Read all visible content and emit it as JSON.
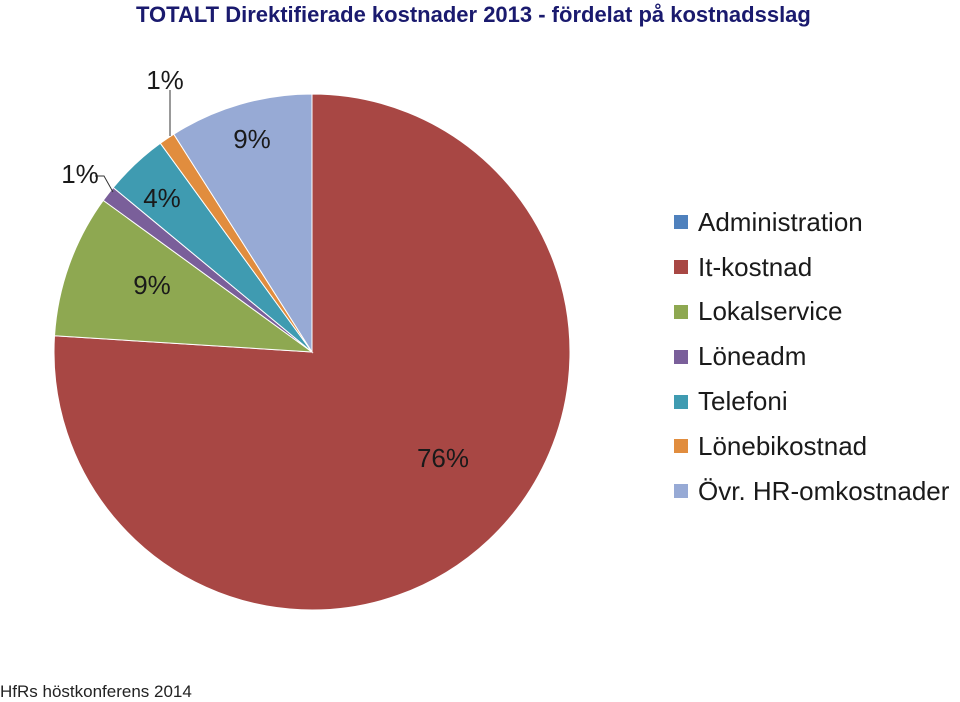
{
  "chart_data": {
    "type": "pie",
    "title": "TOTALT Direktifierade kostnader 2013 - fördelat på kostnadsslag",
    "legend_position": "right",
    "slices": [
      {
        "name": "Administration",
        "value": 0,
        "label": "",
        "color": "#4f81bd"
      },
      {
        "name": "It-kostnad",
        "value": 76,
        "label": "76%",
        "color": "#a84744"
      },
      {
        "name": "Lokalservice",
        "value": 9,
        "label": "9%",
        "color": "#8ea851"
      },
      {
        "name": "Löneadm",
        "value": 1,
        "label": "1%",
        "color": "#7a5f9a"
      },
      {
        "name": "Telefoni",
        "value": 4,
        "label": "4%",
        "color": "#3f9bb1"
      },
      {
        "name": "Lönebikostnad",
        "value": 1,
        "label": "1%",
        "color": "#e18d3e"
      },
      {
        "name": "Övr. HR-omkostnader",
        "value": 9,
        "label": "9%",
        "color": "#97aad5"
      }
    ]
  },
  "footer": "HfRs höstkonferens 2014"
}
